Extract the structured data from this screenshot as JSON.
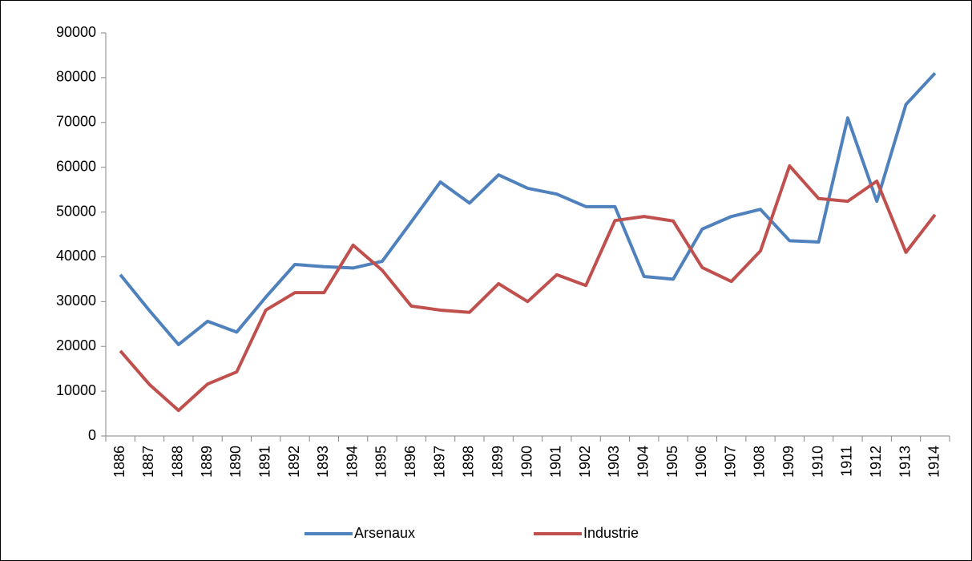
{
  "chart_data": {
    "type": "line",
    "categories": [
      "1886",
      "1887",
      "1888",
      "1889",
      "1890",
      "1891",
      "1892",
      "1893",
      "1894",
      "1895",
      "1896",
      "1897",
      "1898",
      "1899",
      "1900",
      "1901",
      "1902",
      "1903",
      "1904",
      "1905",
      "1906",
      "1907",
      "1908",
      "1909",
      "1910",
      "1911",
      "1912",
      "1913",
      "1914"
    ],
    "series": [
      {
        "name": "Arsenaux",
        "color": "#4f81bd",
        "values": [
          36000,
          28000,
          20400,
          25600,
          23200,
          31000,
          38300,
          37800,
          37500,
          39000,
          47800,
          56700,
          52000,
          58300,
          55300,
          54000,
          51200,
          51200,
          35600,
          35000,
          46200,
          49000,
          50600,
          43600,
          43300,
          71000,
          52400,
          74000,
          81000
        ]
      },
      {
        "name": "Industrie",
        "color": "#c0504d",
        "values": [
          19000,
          11500,
          5700,
          11600,
          14300,
          28100,
          32000,
          32000,
          42600,
          37000,
          29000,
          28100,
          27600,
          34000,
          30000,
          36000,
          33600,
          48100,
          49000,
          48000,
          37600,
          34500,
          41300,
          60300,
          53000,
          52400,
          56900,
          41000,
          49400
        ]
      }
    ],
    "ylim": [
      0,
      90000
    ],
    "yticks": [
      0,
      10000,
      20000,
      30000,
      40000,
      50000,
      60000,
      70000,
      80000,
      90000
    ],
    "grid": false,
    "legend": "bottom"
  }
}
